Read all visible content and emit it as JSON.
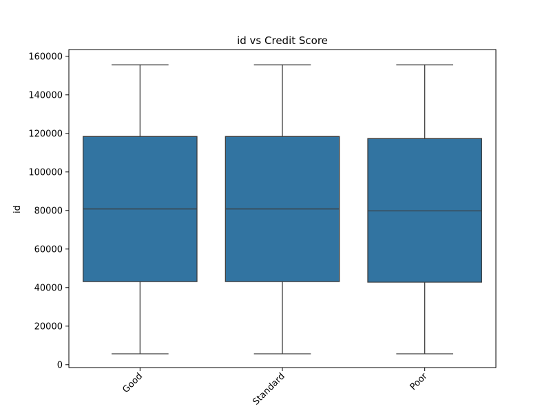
{
  "chart_data": {
    "type": "box",
    "title": "id vs Credit Score",
    "xlabel": "",
    "ylabel": "id",
    "ylim": [
      -1500,
      163500
    ],
    "yticks": [
      0,
      20000,
      40000,
      60000,
      80000,
      100000,
      120000,
      140000,
      160000
    ],
    "categories": [
      "Good",
      "Standard",
      "Poor"
    ],
    "boxes": [
      {
        "category": "Good",
        "whisker_low": 5634,
        "q1": 43100,
        "median": 80800,
        "q3": 118400,
        "whisker_high": 155600
      },
      {
        "category": "Standard",
        "whisker_low": 5634,
        "q1": 43100,
        "median": 80800,
        "q3": 118400,
        "whisker_high": 155600
      },
      {
        "category": "Poor",
        "whisker_low": 5634,
        "q1": 42800,
        "median": 79800,
        "q3": 117300,
        "whisker_high": 155600
      }
    ],
    "colors": {
      "box_fill": "#3274a1",
      "line": "#3d3d3d",
      "axis": "#000000"
    }
  }
}
